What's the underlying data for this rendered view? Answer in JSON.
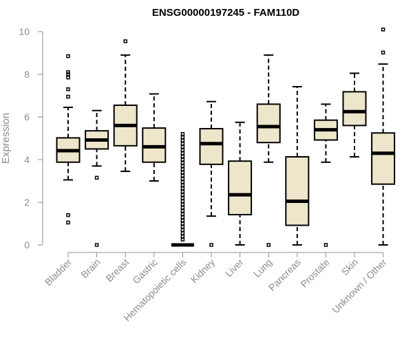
{
  "chart_data": {
    "type": "boxplot",
    "title": "ENSG00000197245 - FAM110D",
    "xlabel": "",
    "ylabel": "Expression",
    "ylim": [
      0,
      10
    ],
    "yticks": [
      0,
      2,
      4,
      6,
      8,
      10
    ],
    "grid": false,
    "box_color": "#ede6cb",
    "categories": [
      "Bladder",
      "Brain",
      "Breast",
      "Gastric",
      "Hematopoietic cells",
      "Kidney",
      "Liver",
      "Lung",
      "Pancreas",
      "Prostate",
      "Skin",
      "Unknown / Other"
    ],
    "boxes": [
      {
        "category": "Bladder",
        "whisker_low": 3.05,
        "q1": 3.88,
        "median": 4.42,
        "q3": 5.02,
        "whisker_high": 6.45,
        "outliers": [
          1.05,
          1.4,
          6.95,
          7.3,
          7.85,
          8.0,
          8.1,
          8.85
        ]
      },
      {
        "category": "Brain",
        "whisker_low": 3.7,
        "q1": 4.5,
        "median": 4.92,
        "q3": 5.35,
        "whisker_high": 6.3,
        "outliers": [
          0.0,
          3.15
        ]
      },
      {
        "category": "Breast",
        "whisker_low": 3.45,
        "q1": 4.65,
        "median": 5.6,
        "q3": 6.55,
        "whisker_high": 8.9,
        "outliers": [
          9.55
        ]
      },
      {
        "category": "Gastric",
        "whisker_low": 3.0,
        "q1": 3.88,
        "median": 4.6,
        "q3": 5.48,
        "whisker_high": 7.08,
        "outliers": []
      },
      {
        "category": "Hematopoietic cells",
        "whisker_low": 0.0,
        "q1": 0.0,
        "median": 0.0,
        "q3": 0.0,
        "whisker_high": 0.0,
        "outliers": [
          0.25,
          0.4,
          0.55,
          0.7,
          0.85,
          1.0,
          1.15,
          1.3,
          1.45,
          1.6,
          1.75,
          1.9,
          2.05,
          2.2,
          2.35,
          2.5,
          2.65,
          2.8,
          2.95,
          3.1,
          3.25,
          3.4,
          3.55,
          3.7,
          3.85,
          4.0,
          4.15,
          4.3,
          4.45,
          4.6,
          4.75,
          4.9,
          5.05,
          5.2
        ]
      },
      {
        "category": "Kidney",
        "whisker_low": 1.35,
        "q1": 3.78,
        "median": 4.75,
        "q3": 5.45,
        "whisker_high": 6.72,
        "outliers": [
          0.0
        ]
      },
      {
        "category": "Liver",
        "whisker_low": 0.0,
        "q1": 1.42,
        "median": 2.35,
        "q3": 3.93,
        "whisker_high": 5.75,
        "outliers": []
      },
      {
        "category": "Lung",
        "whisker_low": 3.88,
        "q1": 4.8,
        "median": 5.55,
        "q3": 6.6,
        "whisker_high": 8.9,
        "outliers": [
          0.0
        ]
      },
      {
        "category": "Pancreas",
        "whisker_low": 0.0,
        "q1": 0.92,
        "median": 2.05,
        "q3": 4.13,
        "whisker_high": 7.42,
        "outliers": []
      },
      {
        "category": "Prostate",
        "whisker_low": 3.88,
        "q1": 4.92,
        "median": 5.4,
        "q3": 5.85,
        "whisker_high": 6.6,
        "outliers": [
          0.0
        ]
      },
      {
        "category": "Skin",
        "whisker_low": 4.13,
        "q1": 5.6,
        "median": 6.25,
        "q3": 7.18,
        "whisker_high": 8.05,
        "outliers": []
      },
      {
        "category": "Unknown / Other",
        "whisker_low": 0.0,
        "q1": 2.85,
        "median": 4.3,
        "q3": 5.25,
        "whisker_high": 8.48,
        "outliers": [
          9.02,
          10.1
        ]
      }
    ]
  }
}
